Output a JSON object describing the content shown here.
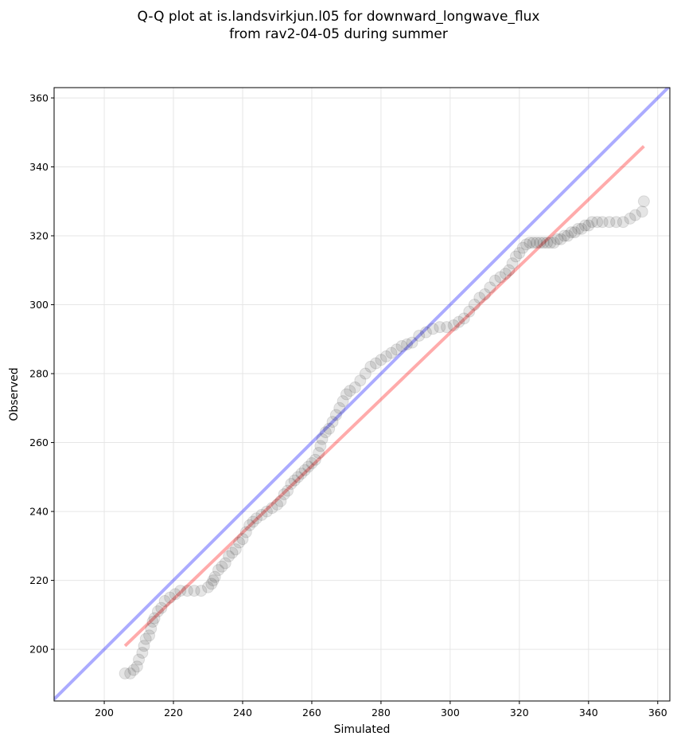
{
  "title_line1": "Q-Q plot at is.landsvirkjun.l05 for downward_longwave_flux",
  "title_line2": "from rav2-04-05 during summer",
  "chart_data": {
    "type": "scatter",
    "xlabel": "Simulated",
    "ylabel": "Observed",
    "xlim": [
      185.5,
      363.5
    ],
    "ylim": [
      185,
      363
    ],
    "xticks": [
      200,
      220,
      240,
      260,
      280,
      300,
      320,
      340,
      360
    ],
    "yticks": [
      200,
      220,
      240,
      260,
      280,
      300,
      320,
      340,
      360
    ],
    "grid": true,
    "colors": {
      "points": "#000000",
      "identity_line": "#0000ff",
      "fit_line": "#ff0000",
      "grid": "#e6e6e6"
    },
    "identity_line": {
      "x": [
        185.5,
        363.5
      ],
      "y": [
        185.5,
        363.5
      ]
    },
    "fit_line": {
      "x": [
        206,
        356
      ],
      "y": [
        201,
        346
      ]
    },
    "points": [
      [
        206,
        193
      ],
      [
        207.5,
        193
      ],
      [
        208.5,
        194
      ],
      [
        209.5,
        195
      ],
      [
        210,
        197
      ],
      [
        211,
        199
      ],
      [
        211.5,
        201
      ],
      [
        212,
        203
      ],
      [
        213,
        204
      ],
      [
        213.5,
        206
      ],
      [
        214,
        208
      ],
      [
        214.5,
        209
      ],
      [
        215.5,
        211
      ],
      [
        216.5,
        212
      ],
      [
        217.5,
        214
      ],
      [
        219,
        215
      ],
      [
        220.5,
        216
      ],
      [
        222,
        217
      ],
      [
        224,
        217
      ],
      [
        226,
        217
      ],
      [
        228,
        217
      ],
      [
        230,
        218
      ],
      [
        231,
        219
      ],
      [
        231.5,
        220
      ],
      [
        232,
        221
      ],
      [
        233,
        223
      ],
      [
        234,
        224
      ],
      [
        235,
        225
      ],
      [
        236,
        227
      ],
      [
        237,
        228
      ],
      [
        238,
        229
      ],
      [
        239,
        231
      ],
      [
        240,
        232
      ],
      [
        241,
        234
      ],
      [
        242,
        236
      ],
      [
        243,
        237
      ],
      [
        244,
        238
      ],
      [
        245.5,
        239
      ],
      [
        247,
        240
      ],
      [
        248.5,
        241
      ],
      [
        250,
        242
      ],
      [
        251,
        243
      ],
      [
        252,
        245
      ],
      [
        253,
        246
      ],
      [
        254,
        248
      ],
      [
        255,
        249
      ],
      [
        256,
        250
      ],
      [
        257,
        251
      ],
      [
        258,
        252
      ],
      [
        259,
        253
      ],
      [
        260,
        254
      ],
      [
        261,
        255
      ],
      [
        262,
        257
      ],
      [
        262.5,
        259
      ],
      [
        263,
        261
      ],
      [
        264,
        263
      ],
      [
        265,
        264
      ],
      [
        266,
        266
      ],
      [
        267,
        268
      ],
      [
        268,
        270
      ],
      [
        269,
        272
      ],
      [
        270,
        274
      ],
      [
        271,
        275
      ],
      [
        272.5,
        276
      ],
      [
        274,
        278
      ],
      [
        275.5,
        280
      ],
      [
        277,
        282
      ],
      [
        278.5,
        283
      ],
      [
        280,
        284
      ],
      [
        281.5,
        285
      ],
      [
        283,
        286
      ],
      [
        284.5,
        287
      ],
      [
        286,
        288
      ],
      [
        287.5,
        288.5
      ],
      [
        289,
        289
      ],
      [
        291,
        291
      ],
      [
        293,
        292
      ],
      [
        295,
        293
      ],
      [
        297,
        293.5
      ],
      [
        299,
        293.5
      ],
      [
        301,
        294
      ],
      [
        302.5,
        295
      ],
      [
        304,
        296
      ],
      [
        305.5,
        298
      ],
      [
        307,
        300
      ],
      [
        308.5,
        302
      ],
      [
        310,
        303
      ],
      [
        311.5,
        305
      ],
      [
        313,
        307
      ],
      [
        314.5,
        308
      ],
      [
        316,
        309
      ],
      [
        317,
        310
      ],
      [
        318,
        312
      ],
      [
        319,
        314
      ],
      [
        320,
        315
      ],
      [
        321,
        316.5
      ],
      [
        322,
        317.5
      ],
      [
        323,
        318
      ],
      [
        324,
        318
      ],
      [
        325,
        318
      ],
      [
        326,
        318
      ],
      [
        327,
        318
      ],
      [
        328,
        318
      ],
      [
        329,
        318
      ],
      [
        330,
        318
      ],
      [
        331,
        319
      ],
      [
        332,
        319
      ],
      [
        333,
        320
      ],
      [
        334,
        320
      ],
      [
        335,
        321
      ],
      [
        336,
        321
      ],
      [
        337,
        322
      ],
      [
        338,
        322
      ],
      [
        339,
        323
      ],
      [
        340,
        323
      ],
      [
        341,
        324
      ],
      [
        342.5,
        324
      ],
      [
        344,
        324
      ],
      [
        346,
        324
      ],
      [
        348,
        324
      ],
      [
        350,
        324
      ],
      [
        352,
        325
      ],
      [
        353.5,
        326
      ],
      [
        355.5,
        327
      ],
      [
        356,
        330
      ]
    ]
  }
}
